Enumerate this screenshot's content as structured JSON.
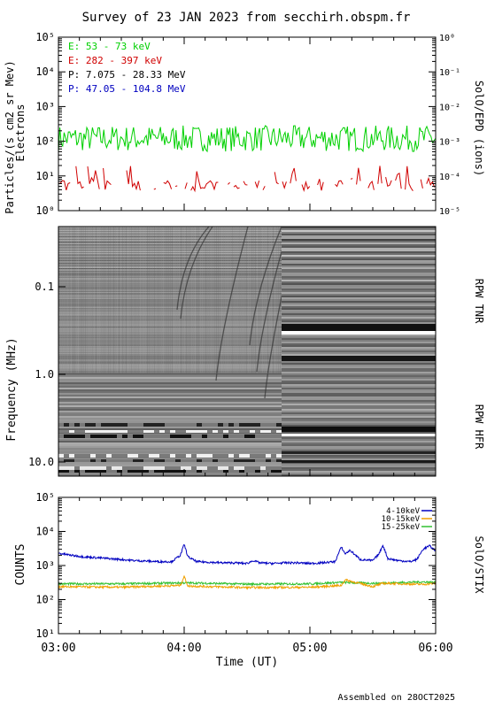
{
  "title": "Survey of 23 JAN 2023 from secchirh.obspm.fr",
  "footer": "Assembled on 28OCT2025",
  "colors": {
    "green": "#00d000",
    "red": "#d00000",
    "black": "#000000",
    "blue": "#0000c0",
    "orange": "#f0a000",
    "stix_green": "#30c030"
  },
  "chart_data": [
    {
      "type": "line",
      "panel": "SolO/EPD",
      "ylabel": "Particles/(s cm2 sr Mev)",
      "ylabel2": "Electrons",
      "right_label": "SolO/EPD (ions)",
      "yscale": "log",
      "ylim": [
        1,
        100000
      ],
      "y_ticks": [
        "10⁰",
        "10¹",
        "10²",
        "10³",
        "10⁴",
        "10⁵"
      ],
      "ylim_right": [
        1e-05,
        1
      ],
      "y_ticks_right": [
        "10⁻⁵",
        "10⁻⁴",
        "10⁻³",
        "10⁻²",
        "10⁻¹",
        "10⁰"
      ],
      "xlim": [
        "03:00",
        "06:00"
      ],
      "legend_placement": "top-left",
      "series": [
        {
          "name": "E: 53 - 73 keV",
          "color": "#00d000",
          "level": 120,
          "pattern": "noisy"
        },
        {
          "name": "E: 282 - 397 keV",
          "color": "#d00000",
          "level": 6,
          "pattern": "sparse"
        },
        {
          "name": "P: 7.075 - 28.33 MeV",
          "color": "#000000",
          "pattern": "none"
        },
        {
          "name": "P: 47.05 - 104.8 MeV",
          "color": "#0000c0",
          "pattern": "none"
        }
      ]
    },
    {
      "type": "heatmap",
      "panel": "RPW",
      "ylabel": "Frequency (MHz)",
      "y_ticks": [
        "0.1",
        "1.0",
        "10.0"
      ],
      "right_label_top": "RPW TNR",
      "right_label_bottom": "RPW HFR",
      "data_gap_after": "04:45"
    },
    {
      "type": "line",
      "panel": "SolO/STIX",
      "ylabel": "COUNTS",
      "right_label": "SolO/STIX",
      "yscale": "log",
      "ylim": [
        10,
        100000
      ],
      "y_ticks": [
        "10¹",
        "10²",
        "10³",
        "10⁴",
        "10⁵"
      ],
      "xlabel": "Time (UT)",
      "x_ticks": [
        "03:00",
        "04:00",
        "05:00",
        "06:00"
      ],
      "legend_placement": "top-right",
      "series": [
        {
          "name": "4-10keV",
          "color": "#0000c0",
          "t_hours": [
            3.0,
            3.1,
            3.2,
            3.3,
            3.4,
            3.5,
            3.6,
            3.7,
            3.8,
            3.9,
            3.97,
            4.0,
            4.03,
            4.1,
            4.2,
            4.3,
            4.4,
            4.5,
            4.55,
            4.6,
            4.7,
            4.8,
            4.9,
            5.0,
            5.1,
            5.2,
            5.25,
            5.28,
            5.32,
            5.4,
            5.5,
            5.55,
            5.58,
            5.62,
            5.7,
            5.8,
            5.85,
            5.9,
            5.95,
            6.0
          ],
          "values": [
            2300,
            2000,
            1800,
            1700,
            1600,
            1500,
            1400,
            1350,
            1300,
            1300,
            2000,
            4200,
            1800,
            1300,
            1250,
            1200,
            1200,
            1150,
            1400,
            1200,
            1150,
            1200,
            1200,
            1150,
            1200,
            1300,
            3500,
            2200,
            2800,
            1500,
            1400,
            2200,
            4000,
            1600,
            1400,
            1300,
            1500,
            3000,
            3800,
            2700
          ]
        },
        {
          "name": "10-15keV",
          "color": "#f0a000",
          "t_hours": [
            3.0,
            3.5,
            3.97,
            4.0,
            4.03,
            4.5,
            5.0,
            5.25,
            5.28,
            5.5,
            5.58,
            5.9,
            6.0
          ],
          "values": [
            240,
            230,
            260,
            480,
            250,
            225,
            230,
            260,
            380,
            240,
            300,
            280,
            300
          ]
        },
        {
          "name": "15-25keV",
          "color": "#30c030",
          "t_hours": [
            3.0,
            3.5,
            4.0,
            4.5,
            5.0,
            5.25,
            5.5,
            5.9,
            6.0
          ],
          "values": [
            290,
            290,
            310,
            285,
            290,
            320,
            300,
            330,
            320
          ]
        }
      ]
    }
  ]
}
